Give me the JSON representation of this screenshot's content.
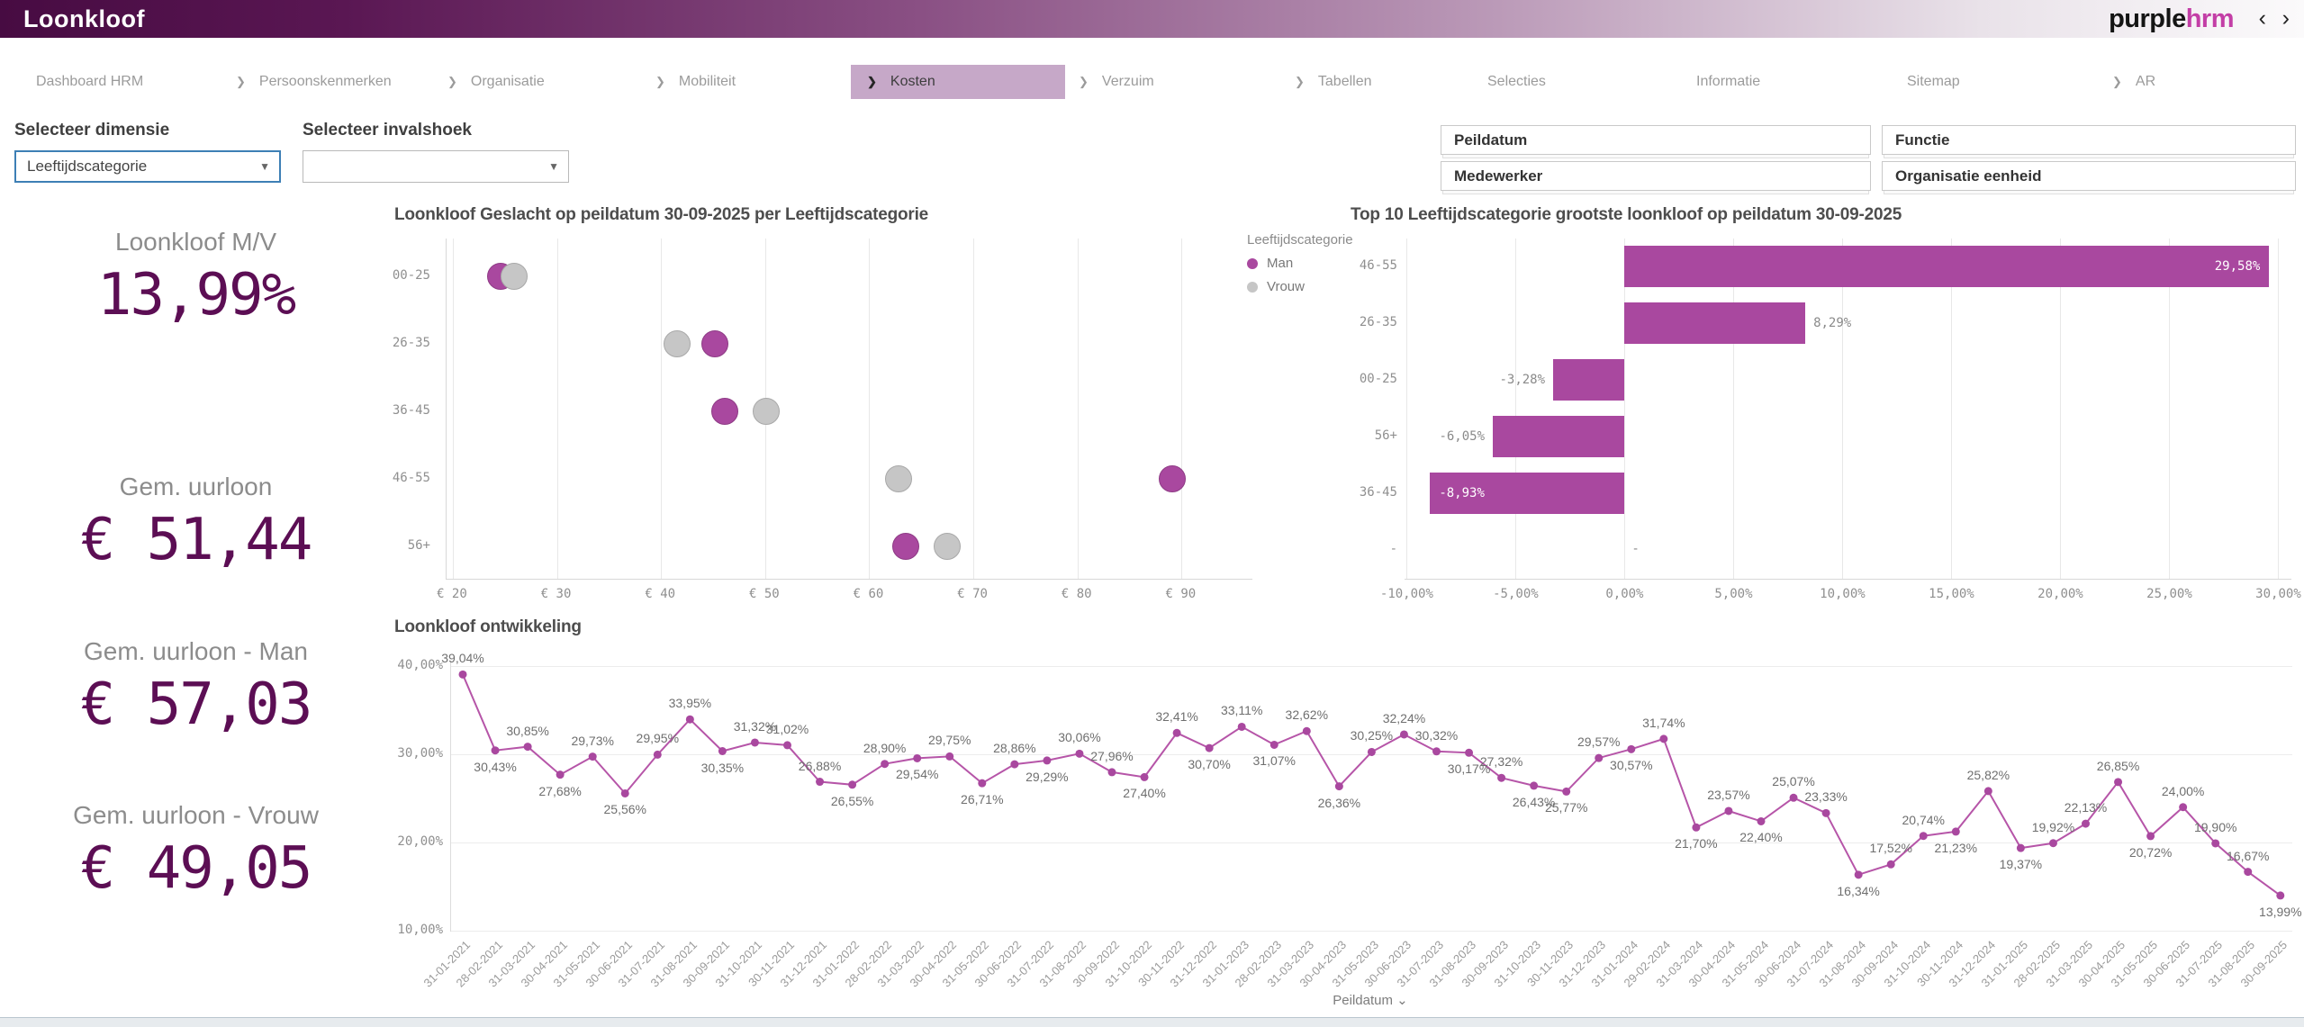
{
  "header": {
    "title": "Loonkloof",
    "logo_purple": "purple",
    "logo_hrm": "hrm"
  },
  "icons": {
    "back": "‹",
    "forward": "›",
    "chevron": "❯",
    "dropdown_caret": "▼",
    "axis_caret": "⌄"
  },
  "nav": {
    "items": [
      {
        "label": "Dashboard HRM"
      },
      {
        "label": "Persoonskenmerken"
      },
      {
        "label": "Organisatie"
      },
      {
        "label": "Mobiliteit"
      },
      {
        "label": "Kosten"
      },
      {
        "label": "Verzuim"
      },
      {
        "label": "Tabellen"
      },
      {
        "label": "Selecties"
      },
      {
        "label": "Informatie"
      },
      {
        "label": "Sitemap"
      },
      {
        "label": "AR"
      }
    ]
  },
  "filters": {
    "dimensie_label": "Selecteer dimensie",
    "dimensie_value": "Leeftijdscategorie",
    "invalshoek_label": "Selecteer invalshoek",
    "invalshoek_value": "",
    "boxes": [
      {
        "label": "Peildatum"
      },
      {
        "label": "Functie"
      },
      {
        "label": "Medewerker"
      },
      {
        "label": "Organisatie eenheid"
      }
    ]
  },
  "kpis": [
    {
      "label": "Loonkloof M/V",
      "value": "13,99%"
    },
    {
      "label": "Gem. uurloon",
      "value": "€ 51,44"
    },
    {
      "label": "Gem. uurloon - Man",
      "value": "€ 57,03"
    },
    {
      "label": "Gem. uurloon - Vrouw",
      "value": "€ 49,05"
    }
  ],
  "colors": {
    "accent_purple": "#a9489f",
    "line_purple": "#b655a8",
    "vrouw_gray": "#c6c6c6",
    "kpi_value": "#5c0e54",
    "active_tab_bg": "#c6a8c8"
  },
  "chart_data": [
    {
      "type": "scatter",
      "title": "Loonkloof Geslacht op peildatum 30-09-2025 per Leeftijdscategorie",
      "categories": [
        "00-25",
        "26-35",
        "36-45",
        "46-55",
        "56+"
      ],
      "series": [
        {
          "name": "Man",
          "color": "#a9489f",
          "values": [
            24.6,
            45.2,
            46.1,
            89.1,
            63.5
          ]
        },
        {
          "name": "Vrouw",
          "color": "#c6c6c6",
          "values": [
            25.9,
            41.5,
            50.1,
            62.8,
            67.5
          ]
        }
      ],
      "x_ticks": [
        "€ 20",
        "€ 30",
        "€ 40",
        "€ 50",
        "€ 60",
        "€ 70",
        "€ 80",
        "€ 90"
      ],
      "x_tick_values": [
        20,
        30,
        40,
        50,
        60,
        70,
        80,
        90
      ],
      "xlim": [
        19.4,
        96.8
      ],
      "legend_title": "Leeftijdscategorie",
      "legend_position": "right"
    },
    {
      "type": "bar",
      "title": "Top 10 Leeftijdscategorie grootste loonkloof op peildatum 30-09-2025",
      "categories": [
        "46-55",
        "26-35",
        "00-25",
        "56+",
        "36-45",
        "-"
      ],
      "values": [
        29.58,
        8.29,
        -3.28,
        -6.05,
        -8.93,
        null
      ],
      "labels": [
        "29,58%",
        "8,29%",
        "-3,28%",
        "-6,05%",
        "-8,93%",
        "-"
      ],
      "label_inside": [
        true,
        false,
        false,
        false,
        true,
        false
      ],
      "x_ticks": [
        "-10,00%",
        "-5,00%",
        "0,00%",
        "5,00%",
        "10,00%",
        "15,00%",
        "20,00%",
        "25,00%",
        "30,00%"
      ],
      "x_tick_values": [
        -10,
        -5,
        0,
        5,
        10,
        15,
        20,
        25,
        30
      ],
      "xlim": [
        -10.1,
        30.6
      ],
      "orientation": "horizontal"
    },
    {
      "type": "line",
      "title": "Loonkloof ontwikkeling",
      "xlabel": "Peildatum",
      "y_ticks": [
        "40,00%",
        "30,00%",
        "20,00%",
        "10,00%"
      ],
      "y_tick_values": [
        40,
        30,
        20,
        10
      ],
      "ylim": [
        10,
        40.5
      ],
      "x": [
        "31-01-2021",
        "28-02-2021",
        "31-03-2021",
        "30-04-2021",
        "31-05-2021",
        "30-06-2021",
        "31-07-2021",
        "31-08-2021",
        "30-09-2021",
        "31-10-2021",
        "30-11-2021",
        "31-12-2021",
        "31-01-2022",
        "28-02-2022",
        "31-03-2022",
        "30-04-2022",
        "31-05-2022",
        "30-06-2022",
        "31-07-2022",
        "31-08-2022",
        "30-09-2022",
        "31-10-2022",
        "30-11-2022",
        "31-12-2022",
        "31-01-2023",
        "28-02-2023",
        "31-03-2023",
        "30-04-2023",
        "31-05-2023",
        "30-06-2023",
        "31-07-2023",
        "31-08-2023",
        "30-09-2023",
        "31-10-2023",
        "30-11-2023",
        "31-12-2023",
        "31-01-2024",
        "29-02-2024",
        "31-03-2024",
        "30-04-2024",
        "31-05-2024",
        "30-06-2024",
        "31-07-2024",
        "31-08-2024",
        "30-09-2024",
        "31-10-2024",
        "30-11-2024",
        "31-12-2024",
        "31-01-2025",
        "28-02-2025",
        "31-03-2025",
        "30-04-2025",
        "31-05-2025",
        "30-06-2025",
        "31-07-2025",
        "31-08-2025",
        "30-09-2025"
      ],
      "values": [
        39.04,
        30.43,
        30.85,
        27.68,
        29.73,
        25.56,
        29.95,
        33.95,
        30.35,
        31.32,
        31.02,
        26.88,
        26.55,
        28.9,
        29.54,
        29.75,
        26.71,
        28.86,
        29.29,
        30.06,
        27.96,
        27.4,
        32.41,
        30.7,
        33.11,
        31.07,
        32.62,
        26.36,
        30.25,
        32.24,
        30.32,
        30.17,
        27.32,
        26.43,
        25.77,
        29.57,
        30.57,
        31.74,
        21.7,
        23.57,
        22.4,
        25.07,
        23.33,
        16.34,
        17.52,
        20.74,
        21.23,
        25.82,
        19.37,
        19.92,
        22.13,
        26.85,
        20.72,
        24.0,
        19.9,
        16.67,
        13.99
      ],
      "labels": [
        "39,04%",
        "30,43%",
        "30,85%",
        "27,68%",
        "29,73%",
        "25,56%",
        "29,95%",
        "33,95%",
        "30,35%",
        "31,32%",
        "31,02%",
        "26,88%",
        "26,55%",
        "28,90%",
        "29,54%",
        "29,75%",
        "26,71%",
        "28,86%",
        "29,29%",
        "30,06%",
        "27,96%",
        "27,40%",
        "32,41%",
        "30,70%",
        "33,11%",
        "31,07%",
        "32,62%",
        "26,36%",
        "30,25%",
        "32,24%",
        "30,32%",
        "30,17%",
        "27,32%",
        "26,43%",
        "25,77%",
        "29,57%",
        "30,57%",
        "31,74%",
        "21,70%",
        "23,57%",
        "22,40%",
        "25,07%",
        "23,33%",
        "16,34%",
        "17,52%",
        "20,74%",
        "21,23%",
        "25,82%",
        "19,37%",
        "19,92%",
        "22,13%",
        "26,85%",
        "20,72%",
        "24,00%",
        "19,90%",
        "16,67%",
        "13,99%"
      ],
      "label_pos": [
        "a",
        "b",
        "a",
        "b",
        "a",
        "b",
        "a",
        "a",
        "b",
        "a",
        "a",
        "a",
        "b",
        "a",
        "b",
        "a",
        "b",
        "a",
        "b",
        "a",
        "a",
        "b",
        "a",
        "b",
        "a",
        "b",
        "a",
        "b",
        "a",
        "a",
        "a",
        "b",
        "a",
        "b",
        "b",
        "a",
        "b",
        "a",
        "b",
        "a",
        "b",
        "a",
        "a",
        "b",
        "a",
        "a",
        "b",
        "a",
        "b",
        "a",
        "a",
        "a",
        "b",
        "a",
        "a",
        "a",
        "b"
      ]
    }
  ]
}
